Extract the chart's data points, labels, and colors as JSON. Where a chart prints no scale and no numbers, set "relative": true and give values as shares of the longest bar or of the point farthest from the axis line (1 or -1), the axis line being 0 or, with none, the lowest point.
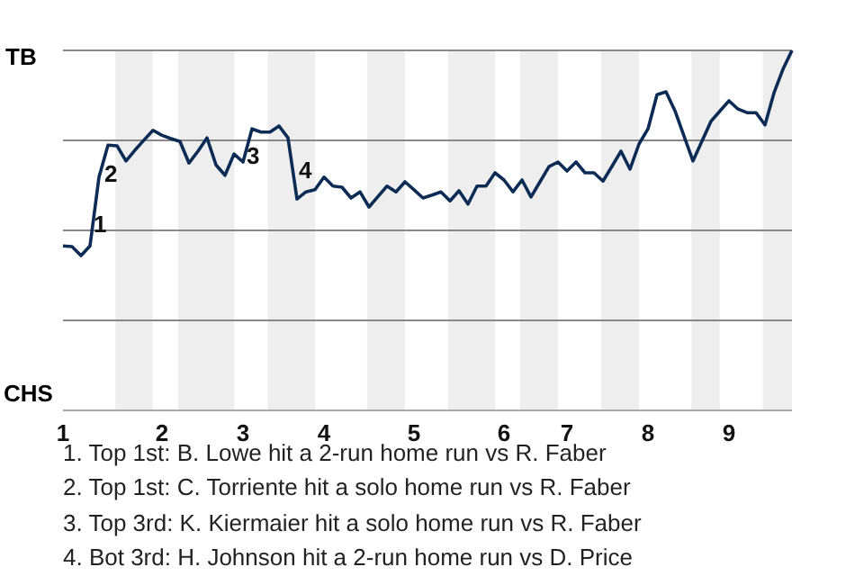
{
  "chart_data": {
    "type": "line",
    "relative": true,
    "categories": [
      "1",
      null,
      null,
      null,
      null,
      null,
      null,
      null,
      null,
      null,
      null,
      "2",
      null,
      null,
      null,
      null,
      null,
      null,
      null,
      null,
      "3",
      null,
      null,
      null,
      null,
      null,
      null,
      null,
      null,
      "4",
      null,
      null,
      null,
      null,
      null,
      null,
      null,
      null,
      null,
      "5",
      null,
      null,
      null,
      null,
      null,
      null,
      null,
      null,
      null,
      "6",
      null,
      null,
      null,
      null,
      null,
      null,
      "7",
      null,
      null,
      null,
      null,
      null,
      null,
      null,
      null,
      "8",
      null,
      null,
      null,
      null,
      null,
      null,
      null,
      null,
      "9",
      null,
      null,
      null,
      null,
      null,
      null,
      null
    ],
    "series": [
      {
        "color": "#0c2c56",
        "values": [
          0.457,
          0.455,
          0.43,
          0.457,
          0.648,
          0.737,
          0.735,
          0.693,
          0.723,
          0.751,
          0.778,
          0.764,
          0.755,
          0.747,
          0.687,
          0.72,
          0.757,
          0.682,
          0.653,
          0.712,
          0.69,
          0.782,
          0.773,
          0.773,
          0.79,
          0.757,
          0.587,
          0.607,
          0.613,
          0.648,
          0.623,
          0.62,
          0.59,
          0.607,
          0.565,
          0.594,
          0.623,
          0.607,
          0.635,
          0.613,
          0.59,
          0.598,
          0.607,
          0.582,
          0.61,
          0.573,
          0.623,
          0.623,
          0.66,
          0.64,
          0.607,
          0.64,
          0.593,
          0.635,
          0.677,
          0.69,
          0.665,
          0.69,
          0.66,
          0.66,
          0.637,
          0.678,
          0.72,
          0.67,
          0.74,
          0.782,
          0.877,
          0.885,
          0.832,
          0.762,
          0.693,
          0.748,
          0.803,
          0.832,
          0.86,
          0.837,
          0.827,
          0.827,
          0.793,
          0.882,
          0.948,
          1
        ]
      }
    ],
    "grid": "y",
    "marker": "none",
    "line_style": "solid",
    "legend": false,
    "annotations": [
      "TB",
      "CHS",
      "1",
      "2",
      "3",
      "4",
      "1. Top 1st: B. Lowe hit a 2-run home run vs R. Faber",
      "2. Top 1st: C. Torriente hit a solo home run vs R. Faber",
      "3. Top 3rd: K. Kiermaier hit a solo home run vs R. Faber",
      "4. Bot 3rd: H. Johnson hit a 2-run home run vs D. Price"
    ]
  }
}
